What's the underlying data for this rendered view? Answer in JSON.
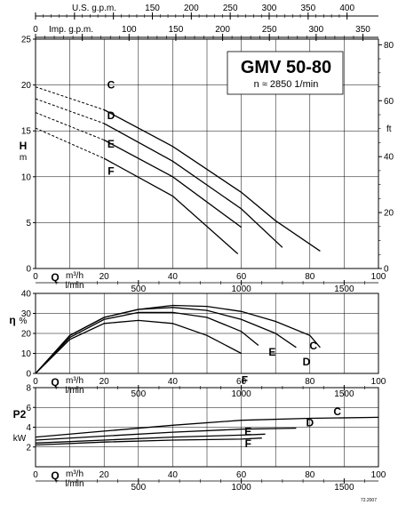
{
  "chart_data": [
    {
      "type": "line",
      "title": "GMV 50-80",
      "subtitle": "n ≈ 2850 1/min",
      "ylabel_left": [
        "H",
        "m"
      ],
      "ylabel_right": "ft",
      "xlabel": [
        "m³/h",
        "l/min"
      ],
      "xlabel_prefix": "Q",
      "top_axes": [
        {
          "label": "U.S. g.p.m.",
          "ticks": [
            0,
            50,
            100,
            150,
            200,
            250,
            300,
            350,
            400
          ],
          "show_labels": [
            "",
            "",
            "",
            "150",
            "200",
            "250",
            "300",
            "350",
            "400"
          ]
        },
        {
          "label": "Imp. g.p.m.",
          "ticks": [
            0,
            50,
            100,
            150,
            200,
            250,
            300,
            350
          ],
          "show_labels": [
            "0",
            "",
            "100",
            "150",
            "200",
            "250",
            "300",
            "350"
          ]
        }
      ],
      "x_m3h_ticks": [
        "0",
        "20",
        "40",
        "60",
        "80",
        "100"
      ],
      "x_lmin_ticks": [
        "500",
        "1000",
        "1500"
      ],
      "y_ticks": [
        "0",
        "5",
        "10",
        "15",
        "20",
        "25"
      ],
      "y_ft_ticks": [
        "0",
        "20",
        "40",
        "60",
        "80"
      ],
      "xlim": [
        0,
        100
      ],
      "ylim": [
        0,
        25
      ],
      "series": [
        {
          "name": "C",
          "x": [
            0,
            20,
            40,
            60,
            70,
            83
          ],
          "y": [
            19.8,
            17.3,
            13.3,
            8.3,
            5.2,
            1.9
          ],
          "dashed_until": 20
        },
        {
          "name": "D",
          "x": [
            0,
            20,
            40,
            60,
            72
          ],
          "y": [
            18.5,
            15.8,
            11.7,
            6.5,
            2.3
          ],
          "dashed_until": 20
        },
        {
          "name": "E",
          "x": [
            0,
            20,
            40,
            60
          ],
          "y": [
            17.0,
            14.0,
            10.0,
            4.5
          ],
          "dashed_until": 20
        },
        {
          "name": "F",
          "x": [
            0,
            20,
            40,
            59
          ],
          "y": [
            15.3,
            12.0,
            7.9,
            1.6
          ],
          "dashed_until": 20
        }
      ]
    },
    {
      "type": "line",
      "ylabel": [
        "η",
        "%"
      ],
      "xlabel": [
        "m³/h",
        "l/min"
      ],
      "xlabel_prefix": "Q",
      "x_m3h_ticks": [
        "0",
        "20",
        "40",
        "60",
        "80",
        "100"
      ],
      "x_lmin_ticks": [
        "500",
        "1000",
        "1500"
      ],
      "y_ticks": [
        "0",
        "10",
        "20",
        "30",
        "40"
      ],
      "xlim": [
        0,
        100
      ],
      "ylim": [
        0,
        40
      ],
      "series": [
        {
          "name": "C",
          "x": [
            0,
            10,
            20,
            30,
            40,
            50,
            60,
            70,
            80,
            83
          ],
          "y": [
            0,
            19,
            28,
            32,
            34,
            33.5,
            31,
            26,
            19,
            13
          ]
        },
        {
          "name": "D",
          "x": [
            0,
            10,
            20,
            30,
            40,
            50,
            60,
            70,
            76
          ],
          "y": [
            0,
            19,
            28,
            32,
            33,
            31.5,
            27,
            20,
            13
          ]
        },
        {
          "name": "E",
          "x": [
            0,
            10,
            20,
            30,
            40,
            50,
            60,
            65
          ],
          "y": [
            0,
            18,
            27,
            30.5,
            30.5,
            28,
            21,
            14
          ]
        },
        {
          "name": "F",
          "x": [
            0,
            10,
            20,
            30,
            40,
            50,
            60
          ],
          "y": [
            0,
            17,
            25,
            26.5,
            25,
            19,
            10
          ]
        }
      ]
    },
    {
      "type": "line",
      "ylabel": [
        "P2",
        "kW"
      ],
      "xlabel": [
        "m³/h",
        "l/min"
      ],
      "xlabel_prefix": "Q",
      "x_m3h_ticks": [
        "0",
        "20",
        "40",
        "60",
        "80",
        "100"
      ],
      "x_lmin_ticks": [
        "500",
        "1000",
        "1500"
      ],
      "y_ticks": [
        "2",
        "4",
        "6",
        "8"
      ],
      "xlim": [
        0,
        100
      ],
      "ylim": [
        0,
        8
      ],
      "series": [
        {
          "name": "C",
          "x": [
            0,
            20,
            40,
            60,
            80,
            100
          ],
          "y": [
            3.0,
            3.6,
            4.2,
            4.7,
            4.9,
            5.0
          ]
        },
        {
          "name": "D",
          "x": [
            0,
            20,
            40,
            60,
            76
          ],
          "y": [
            2.7,
            3.1,
            3.5,
            3.8,
            3.9
          ]
        },
        {
          "name": "E",
          "x": [
            0,
            20,
            40,
            60,
            67
          ],
          "y": [
            2.4,
            2.7,
            3.0,
            3.2,
            3.3
          ]
        },
        {
          "name": "F",
          "x": [
            0,
            20,
            40,
            60,
            66
          ],
          "y": [
            2.2,
            2.5,
            2.7,
            2.8,
            2.9
          ]
        }
      ]
    }
  ],
  "footer_code": "72.2007"
}
